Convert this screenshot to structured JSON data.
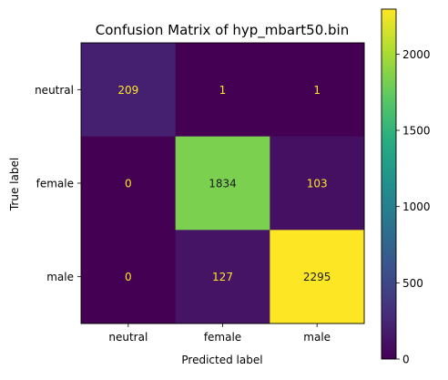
{
  "chart_data": {
    "type": "heatmap",
    "title": "Confusion Matrix of hyp_mbart50.bin",
    "xlabel": "Predicted label",
    "ylabel": "True label",
    "x_categories": [
      "neutral",
      "female",
      "male"
    ],
    "y_categories": [
      "neutral",
      "female",
      "male"
    ],
    "values": [
      [
        209,
        1,
        1
      ],
      [
        0,
        1834,
        103
      ],
      [
        0,
        127,
        2295
      ]
    ],
    "colormap": "viridis",
    "color_range": [
      0,
      2295
    ],
    "colorbar_ticks": [
      0,
      500,
      1000,
      1500,
      2000
    ],
    "grid": false,
    "colors": {
      "annotation_dark_cells": "#fde725",
      "annotation_light_cells": "#1a1a1a"
    }
  }
}
